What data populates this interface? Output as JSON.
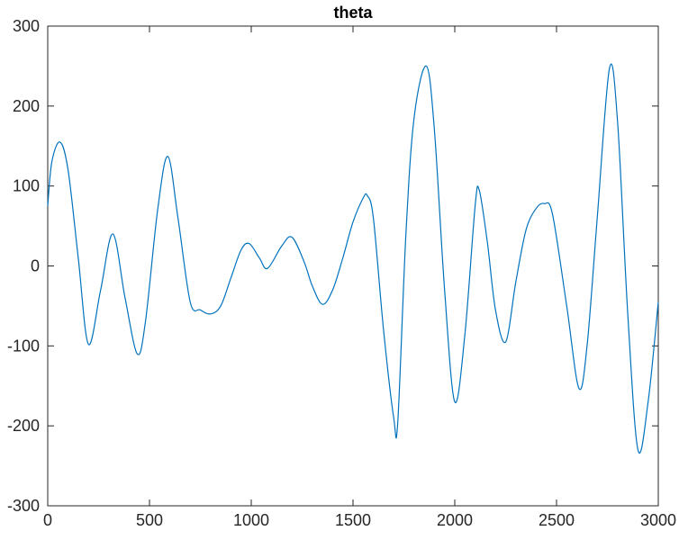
{
  "chart_data": {
    "type": "line",
    "title": "theta",
    "xlabel": "",
    "ylabel": "",
    "xlim": [
      0,
      3000
    ],
    "ylim": [
      -300,
      300
    ],
    "xticks": [
      0,
      500,
      1000,
      1500,
      2000,
      2500,
      3000
    ],
    "yticks": [
      -300,
      -200,
      -100,
      0,
      100,
      200,
      300
    ],
    "xtick_labels": [
      "0",
      "500",
      "1000",
      "1500",
      "2000",
      "2500",
      "3000"
    ],
    "ytick_labels": [
      "-300",
      "-200",
      "-100",
      "0",
      "100",
      "200",
      "300"
    ],
    "grid": false,
    "series_color": "#0072BD",
    "series": [
      {
        "x": [
          0,
          20,
          60,
          100,
          150,
          200,
          260,
          320,
          380,
          440,
          480,
          540,
          590,
          640,
          700,
          750,
          800,
          850,
          900,
          950,
          990,
          1040,
          1080,
          1150,
          1200,
          1260,
          1300,
          1350,
          1400,
          1450,
          1500,
          1550,
          1570,
          1600,
          1650,
          1700,
          1720,
          1760,
          1800,
          1860,
          1900,
          1950,
          2000,
          2050,
          2100,
          2120,
          2160,
          2200,
          2250,
          2300,
          2350,
          2400,
          2440,
          2480,
          2550,
          2610,
          2650,
          2700,
          2760,
          2800,
          2850,
          2900,
          2950,
          3000
        ],
        "y": [
          75,
          130,
          155,
          120,
          10,
          -98,
          -30,
          40,
          -40,
          -110,
          -70,
          70,
          137,
          60,
          -45,
          -55,
          -60,
          -50,
          -15,
          20,
          28,
          10,
          -3,
          25,
          36,
          5,
          -25,
          -48,
          -30,
          10,
          55,
          85,
          88,
          60,
          -80,
          -190,
          -195,
          40,
          185,
          250,
          170,
          -30,
          -170,
          -85,
          75,
          95,
          30,
          -55,
          -95,
          -20,
          45,
          72,
          78,
          65,
          -50,
          -153,
          -100,
          60,
          247,
          180,
          -60,
          -230,
          -170,
          -45
        ]
      }
    ]
  }
}
